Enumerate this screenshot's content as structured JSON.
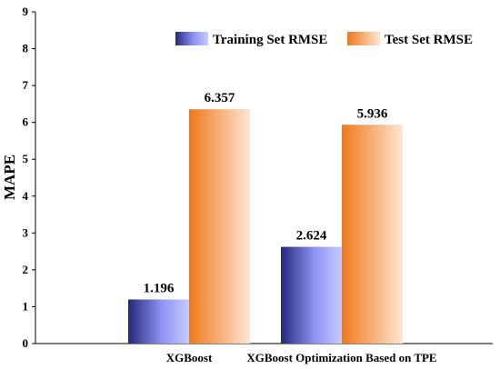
{
  "chart_data": {
    "type": "bar",
    "title": "",
    "xlabel": "",
    "ylabel": "MAPE",
    "ylim": [
      0,
      9
    ],
    "yticks": [
      0,
      1,
      2,
      3,
      4,
      5,
      6,
      7,
      8,
      9
    ],
    "grid": false,
    "legend_position": "top-right",
    "categories": [
      "XGBoost",
      "XGBoost Optimization Based on TPE"
    ],
    "series": [
      {
        "name": "Training Set RMSE",
        "values": [
          1.196,
          2.624
        ],
        "labels": [
          "1.196",
          "2.624"
        ],
        "color": "#2b2f8c",
        "color_light": "#b8bcff"
      },
      {
        "name": "Test Set RMSE",
        "values": [
          6.357,
          5.936
        ],
        "labels": [
          "6.357",
          "5.936"
        ],
        "color": "#f07d22",
        "color_light": "#fde0c8"
      }
    ]
  }
}
